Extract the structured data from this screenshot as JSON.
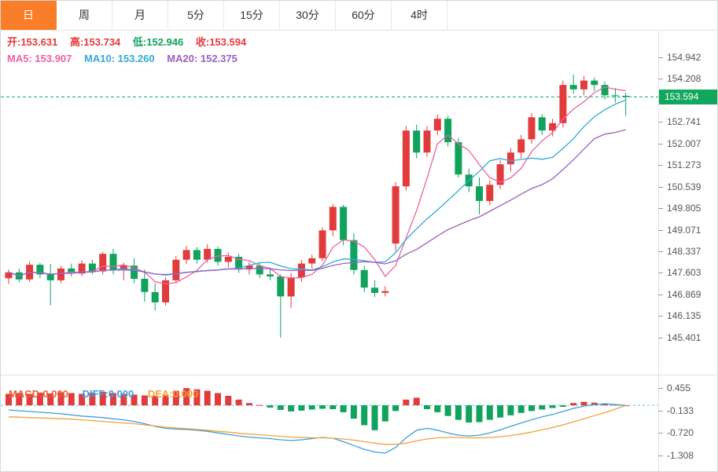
{
  "tabs": {
    "items": [
      {
        "label": "日",
        "active": true
      },
      {
        "label": "周",
        "active": false
      },
      {
        "label": "月",
        "active": false
      },
      {
        "label": "5分",
        "active": false
      },
      {
        "label": "15分",
        "active": false
      },
      {
        "label": "30分",
        "active": false
      },
      {
        "label": "60分",
        "active": false
      },
      {
        "label": "4时",
        "active": false
      }
    ]
  },
  "ohlc": {
    "open": "开:153.631",
    "high": "高:153.734",
    "low": "低:152.946",
    "close": "收:153.594"
  },
  "ma_labels": {
    "ma5": "MA5: 153.907",
    "ma10": "MA10: 153.260",
    "ma20": "MA20: 152.375"
  },
  "macd_labels": {
    "macd": "MACD:0.000",
    "diff": "DIFF:0.000",
    "dea": "DEA:0.000"
  },
  "price_tag": "153.594",
  "colors": {
    "up": "#e23b3c",
    "down": "#0fa35c",
    "price_line": "#11a75c",
    "price_tag_bg": "#11a75c",
    "ma5": "#ee5fa7",
    "ma10": "#31aad6",
    "ma20": "#9b5fc0",
    "macd_bar_pos": "#e23b3c",
    "macd_bar_neg": "#0fa35c",
    "diff": "#3b9fe0",
    "dea": "#f2a13c",
    "zero_line": "#62c8dc",
    "tab_active_bg": "#fa7e29"
  },
  "chart_data": {
    "type": "candlestick",
    "title": "Daily candlestick chart with MA5/MA10/MA20 overlays and MACD sub-chart",
    "main": {
      "ohlc_latest": {
        "open": 153.631,
        "high": 153.734,
        "low": 152.946,
        "close": 153.594
      },
      "ma_values": {
        "MA5": 153.907,
        "MA10": 153.26,
        "MA20": 152.375
      },
      "current_price": 153.594,
      "y_ticks": [
        154.942,
        154.208,
        153.474,
        152.741,
        152.007,
        151.273,
        150.539,
        149.805,
        149.071,
        148.337,
        147.603,
        146.869,
        146.135,
        145.401
      ],
      "candles": [
        [
          147.42,
          147.72,
          147.22,
          147.62
        ],
        [
          147.62,
          147.75,
          147.28,
          147.38
        ],
        [
          147.38,
          147.98,
          147.3,
          147.88
        ],
        [
          147.88,
          147.95,
          147.42,
          147.55
        ],
        [
          147.55,
          147.9,
          146.5,
          147.35
        ],
        [
          147.35,
          147.85,
          147.25,
          147.75
        ],
        [
          147.75,
          147.92,
          147.48,
          147.58
        ],
        [
          147.58,
          148.02,
          147.5,
          147.92
        ],
        [
          147.92,
          148.05,
          147.55,
          147.65
        ],
        [
          147.65,
          148.32,
          147.55,
          148.25
        ],
        [
          148.25,
          148.42,
          147.55,
          147.7
        ],
        [
          147.7,
          147.95,
          147.35,
          147.85
        ],
        [
          147.85,
          148.1,
          147.25,
          147.4
        ],
        [
          147.4,
          147.72,
          146.62,
          146.95
        ],
        [
          146.95,
          147.25,
          146.32,
          146.6
        ],
        [
          146.6,
          147.45,
          146.5,
          147.35
        ],
        [
          147.35,
          148.18,
          147.25,
          148.05
        ],
        [
          148.05,
          148.52,
          147.9,
          148.38
        ],
        [
          148.38,
          148.48,
          147.92,
          148.05
        ],
        [
          148.05,
          148.58,
          147.95,
          148.42
        ],
        [
          148.42,
          148.5,
          147.85,
          147.98
        ],
        [
          147.98,
          148.3,
          147.8,
          148.15
        ],
        [
          148.15,
          148.25,
          147.6,
          147.72
        ],
        [
          147.72,
          147.98,
          147.55,
          147.85
        ],
        [
          147.85,
          147.95,
          147.42,
          147.55
        ],
        [
          147.55,
          147.8,
          147.35,
          147.48
        ],
        [
          147.48,
          147.55,
          145.4,
          146.8
        ],
        [
          146.8,
          147.6,
          146.4,
          147.45
        ],
        [
          147.45,
          148.05,
          147.3,
          147.92
        ],
        [
          147.92,
          148.22,
          147.75,
          148.1
        ],
        [
          148.1,
          149.15,
          148.0,
          149.05
        ],
        [
          149.05,
          149.95,
          148.85,
          149.85
        ],
        [
          149.85,
          149.92,
          148.55,
          148.72
        ],
        [
          148.72,
          148.95,
          147.55,
          147.7
        ],
        [
          147.7,
          147.85,
          146.95,
          147.1
        ],
        [
          147.1,
          147.35,
          146.78,
          146.92
        ],
        [
          146.92,
          147.15,
          146.8,
          146.98
        ],
        [
          148.6,
          150.7,
          148.35,
          150.55
        ],
        [
          150.55,
          152.6,
          150.4,
          152.45
        ],
        [
          152.45,
          152.65,
          151.5,
          151.7
        ],
        [
          151.7,
          152.6,
          151.55,
          152.45
        ],
        [
          152.45,
          153.0,
          152.3,
          152.85
        ],
        [
          152.85,
          152.95,
          151.9,
          152.05
        ],
        [
          152.05,
          152.2,
          150.85,
          150.95
        ],
        [
          150.95,
          151.15,
          150.35,
          150.55
        ],
        [
          150.55,
          150.85,
          149.6,
          150.05
        ],
        [
          150.05,
          150.75,
          149.9,
          150.6
        ],
        [
          150.6,
          151.45,
          150.45,
          151.3
        ],
        [
          151.3,
          151.85,
          151.05,
          151.7
        ],
        [
          151.7,
          152.3,
          151.5,
          152.15
        ],
        [
          152.15,
          153.05,
          152.0,
          152.9
        ],
        [
          152.9,
          153.0,
          152.3,
          152.45
        ],
        [
          152.45,
          152.85,
          152.25,
          152.7
        ],
        [
          152.7,
          154.15,
          152.55,
          154.0
        ],
        [
          154.0,
          154.35,
          153.7,
          153.85
        ],
        [
          153.85,
          154.3,
          153.65,
          154.15
        ],
        [
          154.15,
          154.25,
          153.8,
          154.0
        ],
        [
          154.0,
          154.12,
          153.5,
          153.65
        ],
        [
          153.65,
          153.9,
          153.4,
          153.63
        ],
        [
          153.631,
          153.734,
          152.946,
          153.594
        ]
      ],
      "ma_periods": [
        5,
        10,
        20
      ]
    },
    "macd": {
      "values": {
        "MACD": 0.0,
        "DIFF": 0.0,
        "DEA": 0.0
      },
      "y_ticks": [
        0.455,
        -0.133,
        -0.72,
        -1.308
      ],
      "histogram": [
        0.3,
        0.32,
        0.3,
        0.33,
        0.31,
        0.34,
        0.32,
        0.3,
        0.33,
        0.35,
        0.32,
        0.3,
        0.28,
        0.26,
        0.25,
        0.28,
        0.38,
        0.45,
        0.42,
        0.38,
        0.32,
        0.25,
        0.15,
        0.06,
        0.01,
        -0.06,
        -0.12,
        -0.16,
        -0.14,
        -0.11,
        -0.09,
        -0.1,
        -0.18,
        -0.35,
        -0.52,
        -0.65,
        -0.42,
        -0.15,
        0.15,
        0.2,
        -0.1,
        -0.18,
        -0.28,
        -0.38,
        -0.45,
        -0.44,
        -0.38,
        -0.32,
        -0.26,
        -0.2,
        -0.15,
        -0.11,
        -0.07,
        -0.04,
        0.06,
        0.09,
        0.07,
        0.05,
        0.03,
        0.0
      ],
      "diff_line": [
        -0.12,
        -0.14,
        -0.16,
        -0.18,
        -0.2,
        -0.22,
        -0.25,
        -0.28,
        -0.3,
        -0.32,
        -0.35,
        -0.38,
        -0.42,
        -0.48,
        -0.55,
        -0.6,
        -0.62,
        -0.63,
        -0.65,
        -0.68,
        -0.72,
        -0.76,
        -0.8,
        -0.83,
        -0.85,
        -0.87,
        -0.9,
        -0.92,
        -0.9,
        -0.87,
        -0.84,
        -0.86,
        -0.95,
        -1.05,
        -1.15,
        -1.22,
        -1.25,
        -1.1,
        -0.85,
        -0.65,
        -0.6,
        -0.65,
        -0.72,
        -0.78,
        -0.8,
        -0.78,
        -0.72,
        -0.64,
        -0.55,
        -0.46,
        -0.38,
        -0.3,
        -0.24,
        -0.16,
        -0.08,
        -0.02,
        0.02,
        0.04,
        0.02,
        0.0
      ],
      "dea_line": [
        -0.3,
        -0.31,
        -0.32,
        -0.33,
        -0.34,
        -0.35,
        -0.36,
        -0.38,
        -0.4,
        -0.42,
        -0.44,
        -0.46,
        -0.48,
        -0.51,
        -0.54,
        -0.57,
        -0.59,
        -0.61,
        -0.63,
        -0.65,
        -0.68,
        -0.7,
        -0.73,
        -0.75,
        -0.77,
        -0.79,
        -0.81,
        -0.83,
        -0.84,
        -0.85,
        -0.85,
        -0.86,
        -0.88,
        -0.91,
        -0.95,
        -0.99,
        -1.02,
        -1.02,
        -0.99,
        -0.93,
        -0.88,
        -0.85,
        -0.84,
        -0.84,
        -0.85,
        -0.85,
        -0.84,
        -0.82,
        -0.79,
        -0.75,
        -0.7,
        -0.64,
        -0.58,
        -0.51,
        -0.43,
        -0.35,
        -0.27,
        -0.19,
        -0.1,
        0.0
      ]
    }
  }
}
